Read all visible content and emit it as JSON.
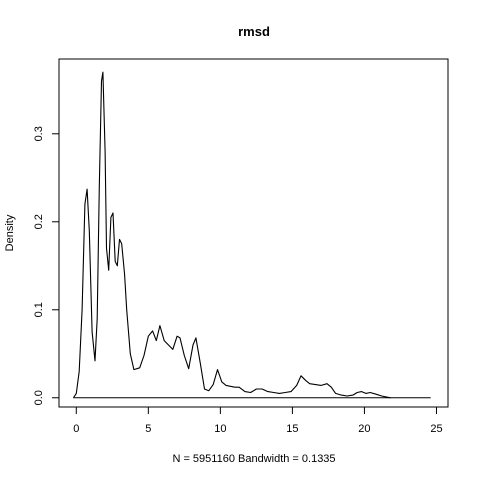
{
  "chart_data": {
    "type": "line",
    "title": "rmsd",
    "xlabel": "N = 5951160   Bandwidth = 0.1335",
    "ylabel": "Density",
    "xlim": [
      -1.2,
      25.8
    ],
    "ylim": [
      -0.0105,
      0.385
    ],
    "x_ticks": [
      0,
      5,
      10,
      15,
      20,
      25
    ],
    "x_tick_labels": [
      "0",
      "5",
      "10",
      "15",
      "20",
      "25"
    ],
    "y_ticks": [
      0.0,
      0.1,
      0.2,
      0.3
    ],
    "y_tick_labels": [
      "0.0",
      "0.1",
      "0.2",
      "0.3"
    ],
    "grid": false,
    "series": [
      {
        "x": [
          -0.2,
          0.0,
          0.2,
          0.4,
          0.6,
          0.75,
          0.9,
          1.1,
          1.3,
          1.45,
          1.6,
          1.75,
          1.85,
          2.0,
          2.1,
          2.25,
          2.4,
          2.55,
          2.7,
          2.85,
          3.0,
          3.15,
          3.35,
          3.5,
          3.75,
          4.0,
          4.4,
          4.7,
          5.0,
          5.3,
          5.55,
          5.8,
          6.1,
          6.4,
          6.7,
          7.0,
          7.2,
          7.5,
          7.8,
          8.1,
          8.3,
          8.6,
          8.9,
          9.2,
          9.5,
          9.8,
          10.1,
          10.4,
          10.7,
          11.0,
          11.3,
          11.7,
          12.1,
          12.5,
          12.9,
          13.3,
          13.7,
          14.1,
          14.5,
          14.9,
          15.3,
          15.6,
          15.9,
          16.2,
          16.6,
          17.0,
          17.4,
          17.7,
          18.0,
          18.4,
          18.8,
          19.2,
          19.5,
          19.8,
          20.1,
          20.4,
          20.8,
          21.2,
          21.5,
          21.8
        ],
        "y": [
          0.0,
          0.005,
          0.03,
          0.1,
          0.22,
          0.237,
          0.19,
          0.075,
          0.042,
          0.09,
          0.24,
          0.36,
          0.37,
          0.28,
          0.17,
          0.145,
          0.205,
          0.21,
          0.155,
          0.15,
          0.18,
          0.175,
          0.14,
          0.1,
          0.05,
          0.032,
          0.034,
          0.048,
          0.07,
          0.076,
          0.065,
          0.082,
          0.065,
          0.06,
          0.055,
          0.07,
          0.068,
          0.048,
          0.033,
          0.06,
          0.068,
          0.04,
          0.01,
          0.008,
          0.015,
          0.032,
          0.018,
          0.014,
          0.013,
          0.012,
          0.012,
          0.007,
          0.006,
          0.01,
          0.01,
          0.007,
          0.006,
          0.005,
          0.006,
          0.007,
          0.014,
          0.025,
          0.02,
          0.016,
          0.015,
          0.014,
          0.016,
          0.012,
          0.005,
          0.003,
          0.002,
          0.003,
          0.006,
          0.007,
          0.005,
          0.006,
          0.004,
          0.002,
          0.001,
          0.0
        ]
      }
    ]
  },
  "baseline": {
    "from": -0.2,
    "to": 24.6
  }
}
